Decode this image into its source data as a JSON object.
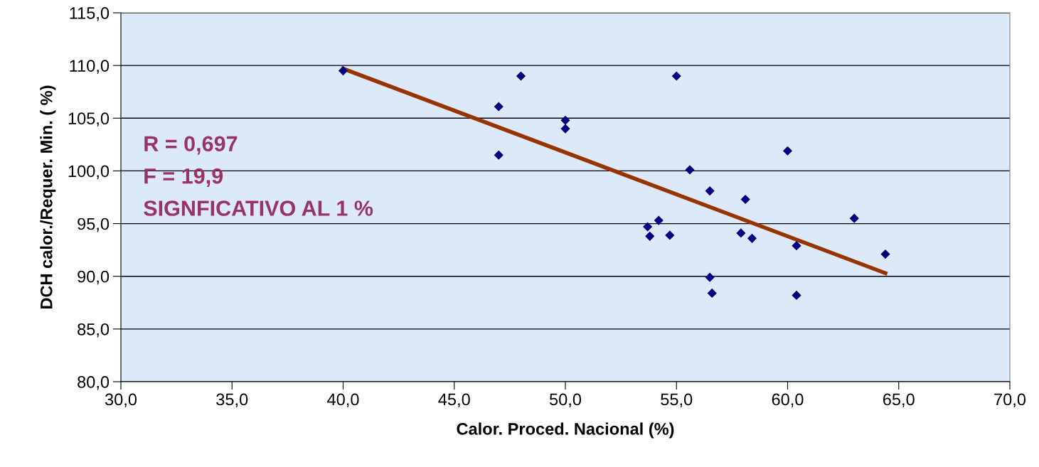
{
  "chart_data": {
    "type": "scatter",
    "xlabel": "Calor. Proced. Nacional (%)",
    "ylabel": "DCH calor./Requer. Min. ( %)",
    "series": [
      {
        "color": "#000080",
        "marker": "diamond",
        "x": [
          40.0,
          48.0,
          47.0,
          47.0,
          50.0,
          50.0,
          55.0,
          60.0,
          55.6,
          56.5,
          58.1,
          53.7,
          54.2,
          53.8,
          54.7,
          57.9,
          58.4,
          60.4,
          63.0,
          64.4,
          56.5,
          56.6,
          60.4
        ],
        "values": [
          109.5,
          109.0,
          106.1,
          101.5,
          104.8,
          104.0,
          109.0,
          101.9,
          100.1,
          98.1,
          97.3,
          94.7,
          95.3,
          93.8,
          93.9,
          94.1,
          93.6,
          92.9,
          95.5,
          92.1,
          89.9,
          88.4,
          88.2
        ]
      },
      {
        "type": "line",
        "color": "#993300",
        "marker": "none",
        "line_style": "solid",
        "x": [
          40.0,
          64.4
        ],
        "values": [
          109.7,
          90.3
        ]
      }
    ],
    "xlim": [
      30,
      70
    ],
    "ylim": [
      80,
      115
    ],
    "xticks": [
      {
        "value": 30,
        "label": "30,0"
      },
      {
        "value": 35,
        "label": "35,0"
      },
      {
        "value": 40,
        "label": "40,0"
      },
      {
        "value": 45,
        "label": "45,0"
      },
      {
        "value": 50,
        "label": "50,0"
      },
      {
        "value": 55,
        "label": "55,0"
      },
      {
        "value": 60,
        "label": "60,0"
      },
      {
        "value": 65,
        "label": "65,0"
      },
      {
        "value": 70,
        "label": "70,0"
      }
    ],
    "yticks": [
      {
        "value": 80,
        "label": "80,0"
      },
      {
        "value": 85,
        "label": "85,0"
      },
      {
        "value": 90,
        "label": "90,0"
      },
      {
        "value": 95,
        "label": "95,0"
      },
      {
        "value": 100,
        "label": "100,0"
      },
      {
        "value": 105,
        "label": "105,0"
      },
      {
        "value": 110,
        "label": "110,0"
      },
      {
        "value": 115,
        "label": "115,0"
      }
    ],
    "grid": "y",
    "legend": false,
    "annotations": [
      "R = 0,697",
      "F = 19,9",
      "SIGNFICATIVO AL 1 %"
    ]
  }
}
